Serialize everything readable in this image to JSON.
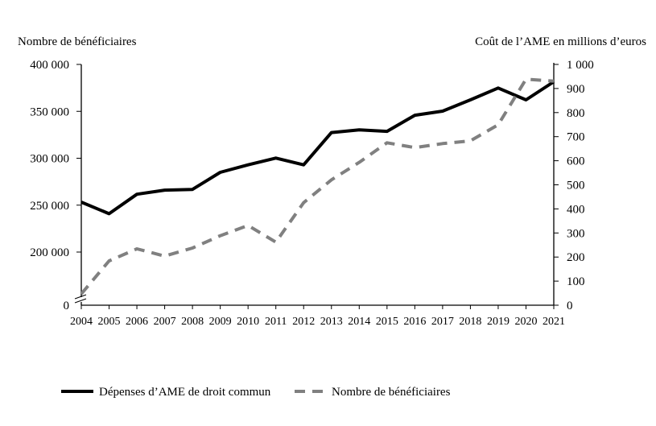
{
  "chart_data": {
    "type": "line",
    "title": "",
    "ylabel_left": "Nombre de bénéficiaires",
    "ylabel_right": "Coût de l’AME en millions d’euros",
    "x": [
      "2004",
      "2005",
      "2006",
      "2007",
      "2008",
      "2009",
      "2010",
      "2011",
      "2012",
      "2013",
      "2014",
      "2015",
      "2016",
      "2017",
      "2018",
      "2019",
      "2020",
      "2021"
    ],
    "y_left_ticks": [
      "0",
      "200 000",
      "250 000",
      "300 000",
      "350 000",
      "400 000"
    ],
    "y_left_tick_values": [
      0,
      200000,
      250000,
      300000,
      350000,
      400000
    ],
    "y_left_axis_break": true,
    "y_right_ticks": [
      "0",
      "100",
      "200",
      "300",
      "400",
      "500",
      "600",
      "700",
      "800",
      "900",
      "1 000"
    ],
    "y_right_tick_values": [
      0,
      100,
      200,
      300,
      400,
      500,
      600,
      700,
      800,
      900,
      1000
    ],
    "ylim_left": [
      0,
      400000
    ],
    "ylim_right": [
      0,
      1000
    ],
    "grid": false,
    "legend_position": "bottom",
    "series": [
      {
        "name": "Dépenses d’AME de droit commun",
        "axis": "right",
        "style": "solid",
        "color": "#000000",
        "values": [
          428,
          380,
          461,
          478,
          481,
          552,
          583,
          611,
          583,
          717,
          728,
          722,
          789,
          806,
          853,
          902,
          853,
          928
        ]
      },
      {
        "name": "Nombre de bénéficiaires",
        "axis": "left",
        "style": "dashed",
        "color": "#808080",
        "values": [
          155400,
          190600,
          203400,
          195700,
          204300,
          217400,
          228300,
          210600,
          252600,
          277000,
          295600,
          316500,
          311300,
          315600,
          318500,
          335600,
          384300,
          382200
        ]
      }
    ]
  }
}
